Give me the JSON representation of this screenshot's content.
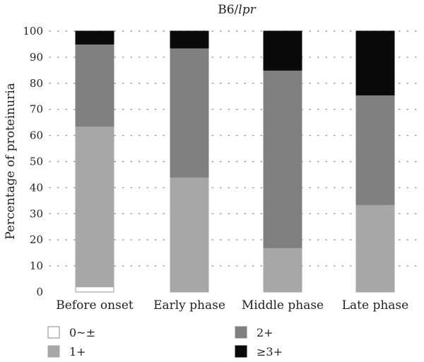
{
  "chart_data": {
    "type": "bar",
    "stacked": true,
    "title_prefix": "B6/",
    "title_italic": "lpr",
    "xlabel": "",
    "ylabel": "Percentage of proteinuria",
    "categories": [
      "Before onset",
      "Early phase",
      "Middle phase",
      "Late phase"
    ],
    "ylim": [
      0,
      100
    ],
    "yticks": [
      "0",
      "10",
      "20",
      "30",
      "40",
      "50",
      "60",
      "70",
      "80",
      "90",
      "100"
    ],
    "grid": "dotted horizontal",
    "series": [
      {
        "name": "0~±",
        "values": [
          2,
          0,
          0,
          0
        ],
        "color": "#ffffff"
      },
      {
        "name": "1+",
        "values": [
          61.5,
          44,
          17,
          33.5
        ],
        "color": "#a7a7a7"
      },
      {
        "name": "2+",
        "values": [
          31.5,
          49.5,
          68,
          42
        ],
        "color": "#808080"
      },
      {
        "name": "≥3+",
        "values": [
          5,
          6.5,
          15,
          24.5
        ],
        "color": "#0a0a0a"
      }
    ],
    "legend_position": "bottom"
  }
}
